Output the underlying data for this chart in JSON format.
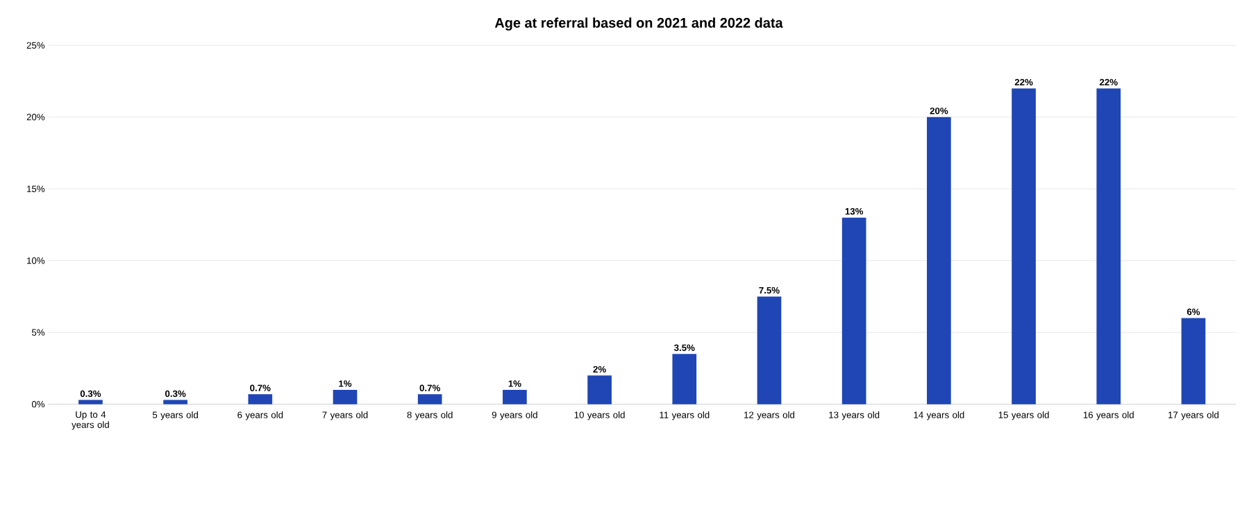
{
  "chart_data": {
    "type": "bar",
    "title": "Age at referral based on 2021 and 2022 data",
    "categories": [
      "Up to 4 years old",
      "5 years old",
      "6 years old",
      "7 years old",
      "8 years old",
      "9 years old",
      "10 years old",
      "11 years old",
      "12 years old",
      "13 years old",
      "14 years old",
      "15 years old",
      "16 years old",
      "17 years old"
    ],
    "values": [
      0.3,
      0.3,
      0.7,
      1,
      0.7,
      1,
      2,
      3.5,
      7.5,
      13,
      20,
      22,
      22,
      6
    ],
    "value_labels": [
      "0.3%",
      "0.3%",
      "0.7%",
      "1%",
      "0.7%",
      "1%",
      "2%",
      "3.5%",
      "7.5%",
      "13%",
      "20%",
      "22%",
      "22%",
      "6%"
    ],
    "color": "#1f46b4",
    "ylim": [
      0,
      25
    ],
    "yticks": [
      {
        "value": 0,
        "label": "0%"
      },
      {
        "value": 5,
        "label": "5%"
      },
      {
        "value": 10,
        "label": "10%"
      },
      {
        "value": 15,
        "label": "15%"
      },
      {
        "value": 20,
        "label": "20%"
      },
      {
        "value": 25,
        "label": "25%"
      }
    ],
    "grid": "y"
  }
}
